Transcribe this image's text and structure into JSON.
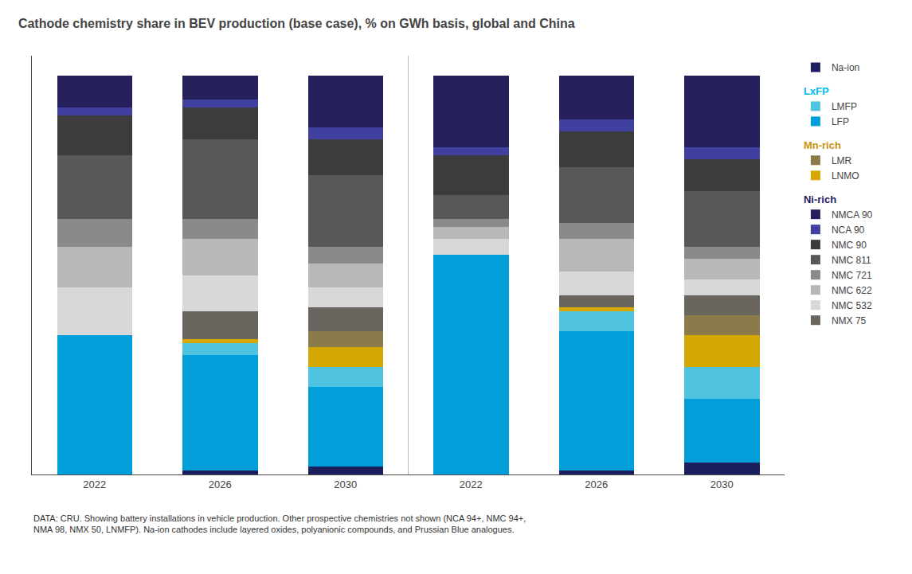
{
  "chart_data": {
    "type": "bar",
    "stacked": true,
    "title": "Cathode chemistry share in BEV production (base case), % on GWh basis, global and China",
    "categories": [
      "2022",
      "2026",
      "2030",
      "2022",
      "2026",
      "2030"
    ],
    "series": [
      {
        "name": "Na-ion",
        "color": "#1a1f5e",
        "values": [
          0,
          1,
          2,
          0,
          1,
          3
        ]
      },
      {
        "name": "LFP",
        "color": "#009fda",
        "values": [
          35,
          29,
          20,
          55,
          35,
          16
        ]
      },
      {
        "name": "LMFP",
        "color": "#4fc3e0",
        "values": [
          0,
          3,
          5,
          0,
          5,
          8
        ]
      },
      {
        "name": "LNMO",
        "color": "#d4a800",
        "values": [
          0,
          1,
          5,
          0,
          1,
          8
        ]
      },
      {
        "name": "LMR",
        "color": "#8b7b4a",
        "values": [
          0,
          0,
          4,
          0,
          0,
          5
        ]
      },
      {
        "name": "NMX 75",
        "color": "#6b6560",
        "values": [
          0,
          7,
          6,
          0,
          3,
          5
        ]
      },
      {
        "name": "NMC 532",
        "color": "#d8d8d8",
        "values": [
          12,
          9,
          5,
          4,
          6,
          4
        ]
      },
      {
        "name": "NMC 622",
        "color": "#b8b8b8",
        "values": [
          10,
          9,
          6,
          3,
          8,
          5
        ]
      },
      {
        "name": "NMC 721",
        "color": "#8a8a8a",
        "values": [
          7,
          5,
          4,
          2,
          4,
          3
        ]
      },
      {
        "name": "NMC 811",
        "color": "#585858",
        "values": [
          16,
          20,
          18,
          6,
          14,
          14
        ]
      },
      {
        "name": "NMC 90",
        "color": "#3c3c3c",
        "values": [
          10,
          8,
          9,
          10,
          9,
          8
        ]
      },
      {
        "name": "NCA 90",
        "color": "#4040a0",
        "values": [
          2,
          2,
          3,
          2,
          3,
          3
        ]
      },
      {
        "name": "NMCA 90",
        "color": "#25205c",
        "values": [
          8,
          6,
          13,
          18,
          11,
          18
        ]
      }
    ],
    "legend_groups": [
      {
        "name": "Ni-rich",
        "color": "#1e2060",
        "series": [
          "NMX 75",
          "NMC 532",
          "NMC 622",
          "NMC 721",
          "NMC 811",
          "NMC 90",
          "NCA 90",
          "NMCA 90"
        ]
      },
      {
        "name": "Mn-rich",
        "color": "#c8960c",
        "series": [
          "LNMO",
          "LMR"
        ]
      },
      {
        "name": "LxFP",
        "color": "#00bbee",
        "series": [
          "LFP",
          "LMFP"
        ]
      }
    ],
    "footer": "DATA: CRU. Showing battery installations in vehicle production. Other prospective chemistries not shown (NCA 94+, NMC 94+,\nNMA 98, NMX 50, LNMFP). Na-ion cathodes include layered oxides, polyanionic compounds, and Prussian Blue analogues.",
    "ylim": [
      0,
      105
    ],
    "yticks": [],
    "tick_labels": "x",
    "grid": false,
    "legend": "right"
  }
}
